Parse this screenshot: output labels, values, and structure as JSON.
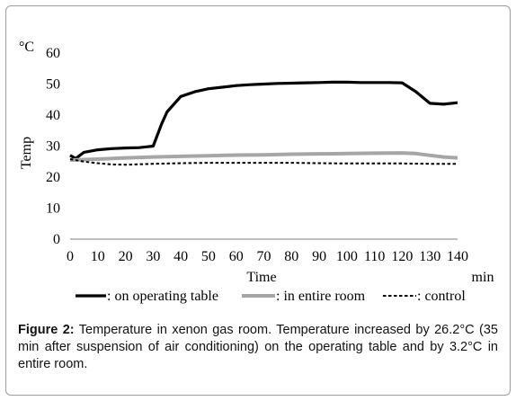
{
  "chart_data": {
    "type": "line",
    "unit_label": "°C",
    "ylabel": "Temp",
    "xlabel": "Time",
    "x_unit": "min",
    "ylim": [
      0,
      60
    ],
    "xlim": [
      0,
      140
    ],
    "y_ticks": [
      "0",
      "10",
      "20",
      "30",
      "40",
      "50",
      "60"
    ],
    "x_ticks": [
      "0",
      "10",
      "20",
      "30",
      "40",
      "50",
      "60",
      "70",
      "80",
      "90",
      "100",
      "110",
      "120",
      "130",
      "140"
    ],
    "grid": false,
    "legend_position": "bottom",
    "series": [
      {
        "name": ": on operating table",
        "color": "#000000",
        "style": "solid-thick",
        "x": [
          0,
          2,
          5,
          10,
          15,
          20,
          25,
          28,
          30,
          33,
          35,
          40,
          45,
          50,
          55,
          60,
          65,
          70,
          75,
          80,
          85,
          90,
          95,
          100,
          105,
          110,
          115,
          120,
          125,
          130,
          135,
          140
        ],
        "y": [
          27,
          26,
          28,
          28.8,
          29.2,
          29.4,
          29.5,
          29.8,
          30,
          37,
          41,
          46,
          47.5,
          48.5,
          49,
          49.5,
          49.8,
          50,
          50.2,
          50.3,
          50.4,
          50.5,
          50.6,
          50.6,
          50.5,
          50.5,
          50.5,
          50.4,
          47.5,
          43.8,
          43.5,
          44
        ]
      },
      {
        "name": ": in entire room",
        "color": "#a6a6a6",
        "style": "solid-thick",
        "x": [
          0,
          10,
          20,
          30,
          40,
          50,
          60,
          70,
          80,
          90,
          100,
          110,
          120,
          125,
          130,
          135,
          140
        ],
        "y": [
          25.5,
          25.8,
          26.2,
          26.5,
          26.7,
          26.9,
          27.1,
          27.2,
          27.4,
          27.5,
          27.6,
          27.7,
          27.8,
          27.6,
          27.0,
          26.5,
          26.2
        ]
      },
      {
        "name": ": control",
        "color": "#000000",
        "style": "dashed",
        "x": [
          0,
          5,
          10,
          15,
          20,
          30,
          40,
          50,
          60,
          70,
          80,
          90,
          100,
          110,
          120,
          130,
          140
        ],
        "y": [
          25.8,
          25,
          24.5,
          24.1,
          24.0,
          24.3,
          24.5,
          24.6,
          24.6,
          24.6,
          24.6,
          24.5,
          24.4,
          24.4,
          24.4,
          24.3,
          24.3
        ]
      }
    ]
  },
  "caption": {
    "label": "Figure 2:",
    "text": " Temperature in xenon gas room. Temperature increased by 26.2°C (35 min after suspension of air conditioning) on the operating table and by 3.2°C in entire room."
  }
}
